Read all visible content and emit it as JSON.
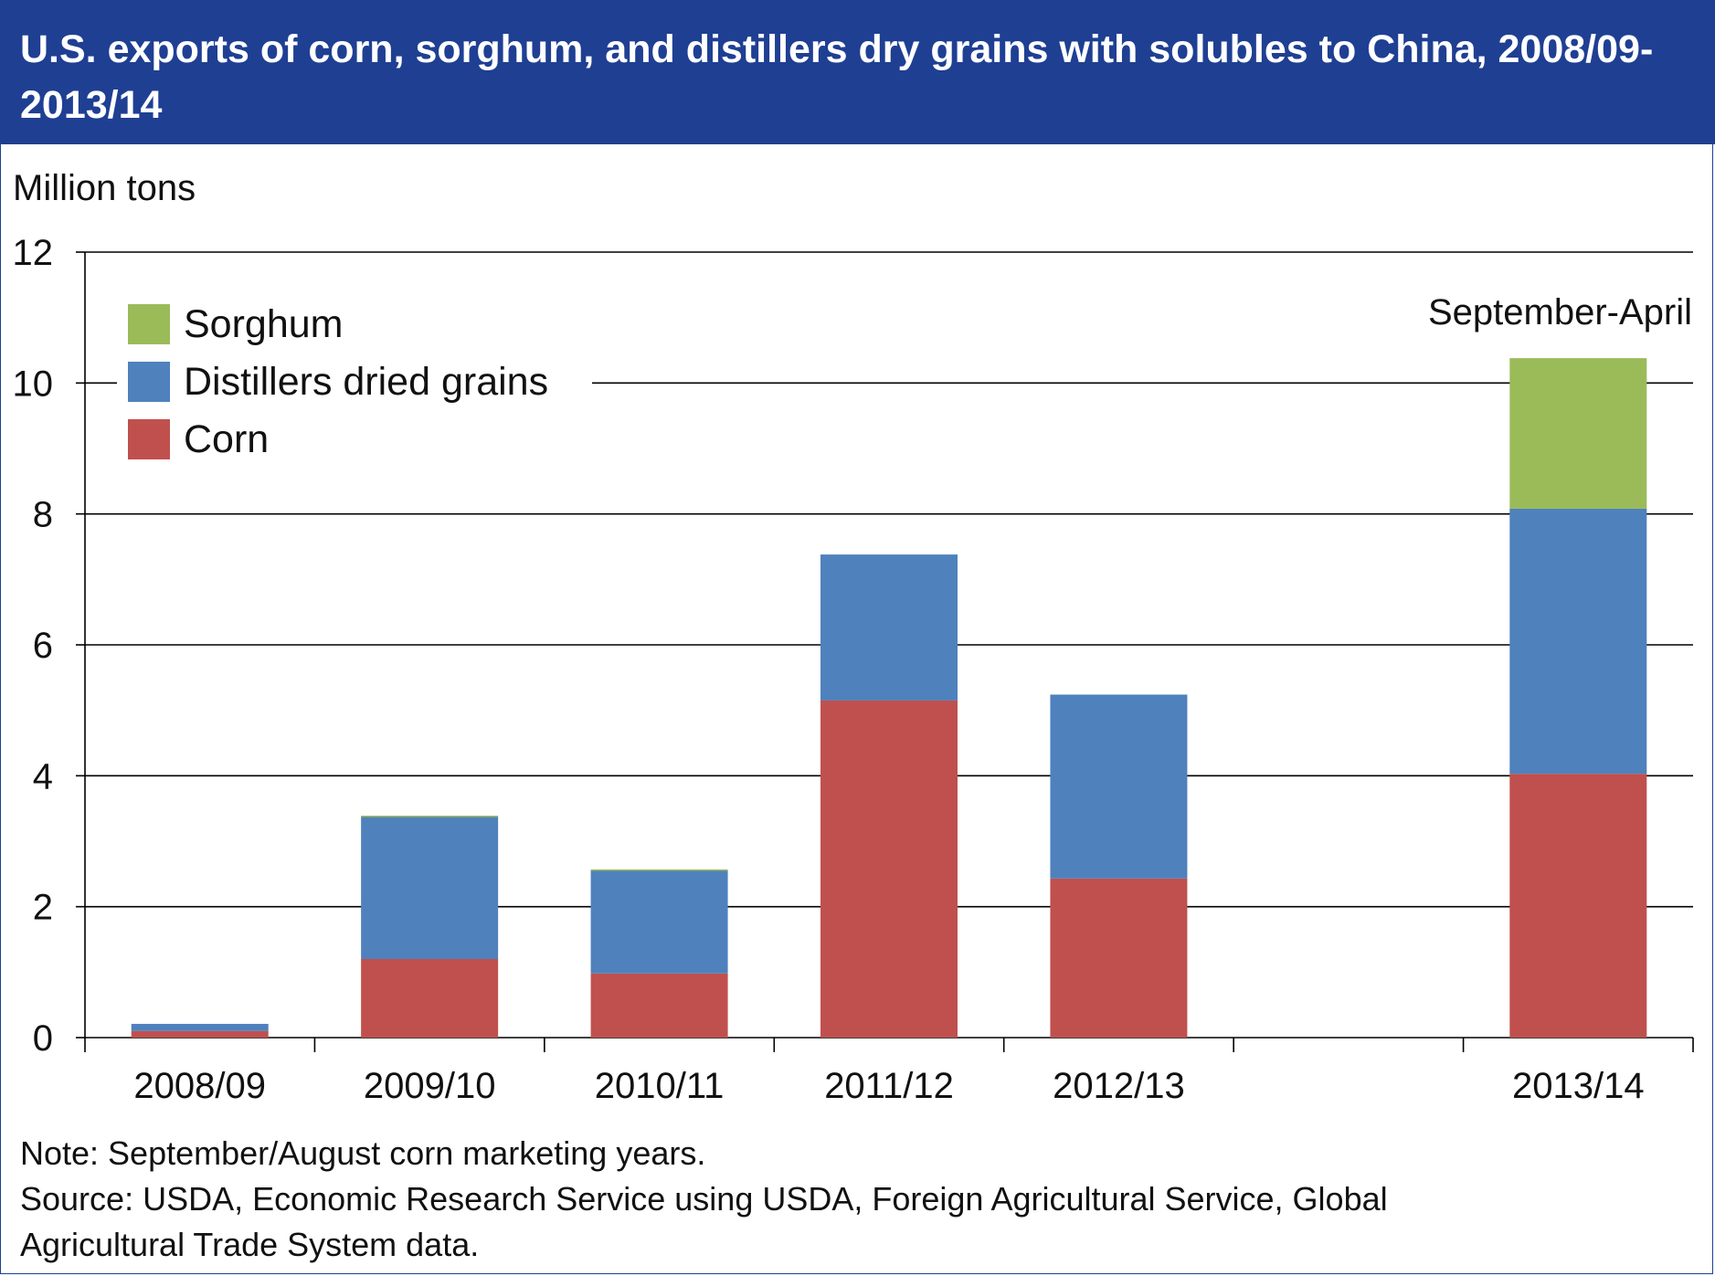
{
  "title": "U.S. exports of corn, sorghum, and distillers dry grains with solubles to China, 2008/09-2013/14",
  "notes": {
    "note": "Note: September/August corn marketing years.",
    "source_line1": "Source: USDA, Economic Research Service using USDA, Foreign Agricultural Service, Global",
    "source_line2": "Agricultural Trade System data."
  },
  "colors": {
    "title_bar": "#1f3f93",
    "corn": "#c0504d",
    "distillers": "#4f81bd",
    "sorghum": "#9bbb59"
  },
  "chart_data": {
    "type": "bar",
    "stacked": true,
    "ylabel": "Million tons",
    "ylim": [
      0,
      12
    ],
    "yticks": [
      0,
      2,
      4,
      6,
      8,
      10,
      12
    ],
    "grid": true,
    "legend_position": "top-left",
    "categories": [
      "2008/09",
      "2009/10",
      "2010/11",
      "2011/12",
      "2012/13",
      "2013/14"
    ],
    "series": [
      {
        "name": "Corn",
        "color": "#c0504d",
        "values": [
          0.1,
          1.2,
          0.98,
          5.15,
          2.43,
          4.03
        ]
      },
      {
        "name": "Distillers dried grains",
        "color": "#4f81bd",
        "values": [
          0.11,
          2.18,
          1.58,
          2.23,
          2.81,
          4.05
        ]
      },
      {
        "name": "Sorghum",
        "color": "#9bbb59",
        "values": [
          0,
          0.01,
          0.01,
          0,
          0,
          2.3
        ]
      }
    ],
    "legend_order": [
      "Sorghum",
      "Distillers dried grains",
      "Corn"
    ],
    "annotations": [
      {
        "text": "September-April",
        "category": "2013/14"
      }
    ]
  }
}
